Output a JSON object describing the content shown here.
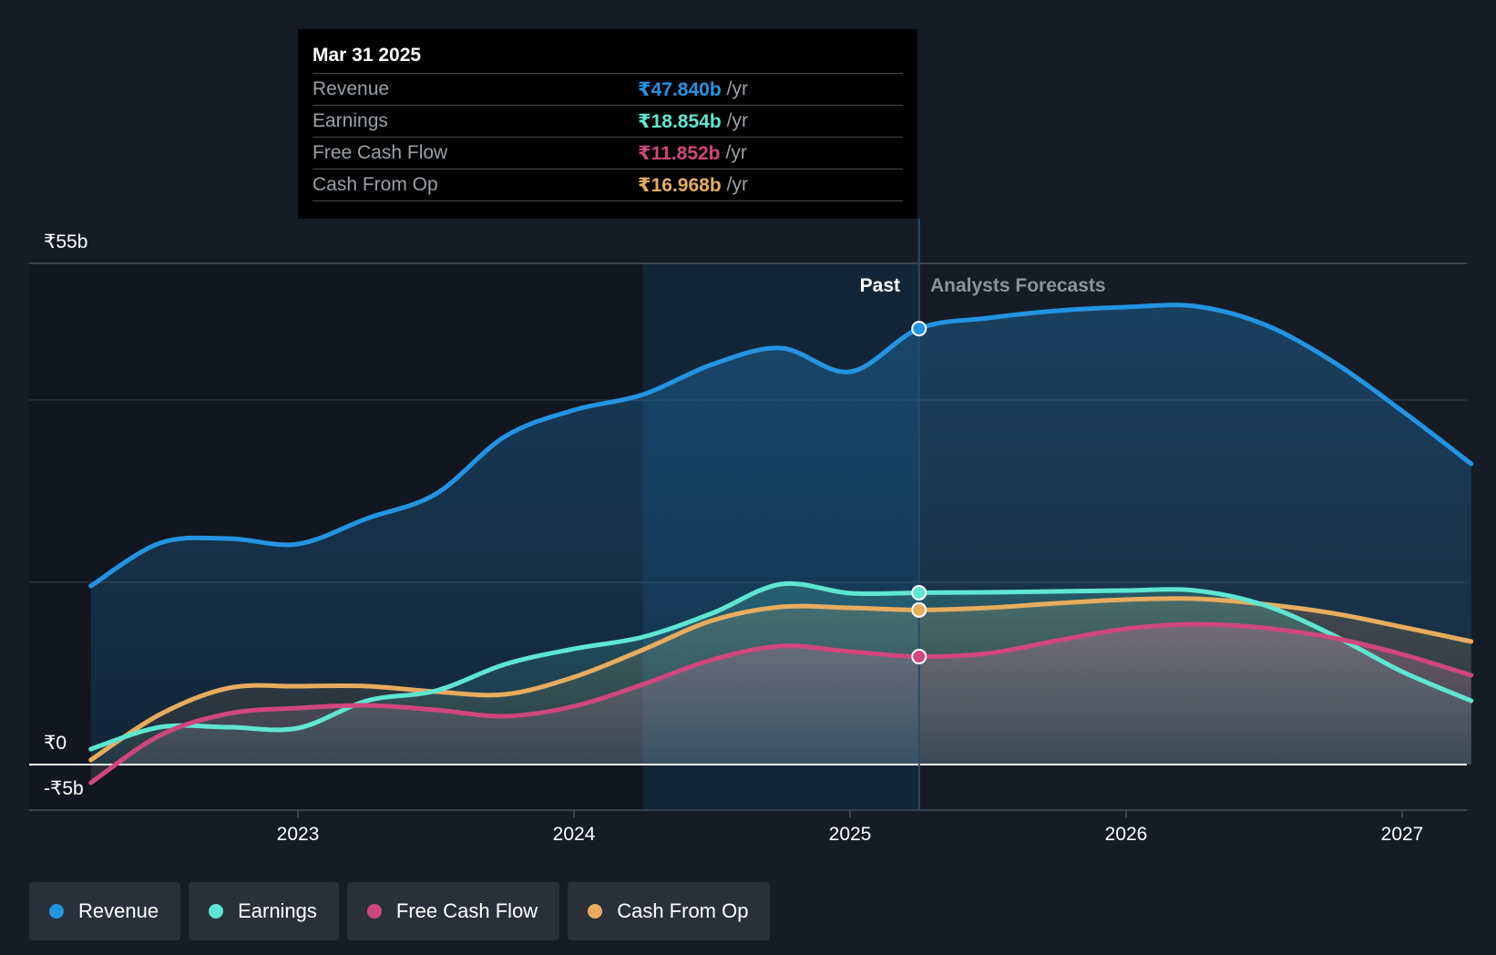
{
  "chart_data": {
    "type": "area",
    "tooltip_date": "Mar 31 2025",
    "past_label": "Past",
    "forecast_label": "Analysts Forecasts",
    "y_tick_labels": [
      "₹55b",
      "₹0",
      "-₹5b"
    ],
    "y_tick_values": [
      55,
      0,
      -5
    ],
    "ylim": [
      -5,
      55
    ],
    "x_tick_labels": [
      "2023",
      "2024",
      "2025",
      "2026",
      "2027"
    ],
    "x_tick_values": [
      2023,
      2024,
      2025,
      2026,
      2027
    ],
    "xlim": [
      2022.08,
      2027.25
    ],
    "highlight_start": 2024.25,
    "past_end": 2025.25,
    "series": [
      {
        "name": "Revenue",
        "color": "#2394e2",
        "tooltip_value": "₹47.840b",
        "unit": "/yr",
        "points": [
          [
            2022.25,
            19.6
          ],
          [
            2022.5,
            24.3
          ],
          [
            2022.75,
            24.8
          ],
          [
            2023.0,
            24.2
          ],
          [
            2023.25,
            27.0
          ],
          [
            2023.5,
            29.7
          ],
          [
            2023.75,
            36.0
          ],
          [
            2024.0,
            38.9
          ],
          [
            2024.25,
            40.6
          ],
          [
            2024.5,
            43.9
          ],
          [
            2024.75,
            45.7
          ],
          [
            2025.0,
            43.1
          ],
          [
            2025.25,
            47.84
          ],
          [
            2025.5,
            49.0
          ],
          [
            2025.75,
            49.8
          ],
          [
            2026.0,
            50.2
          ],
          [
            2026.25,
            50.3
          ],
          [
            2026.5,
            48.3
          ],
          [
            2026.75,
            44.2
          ],
          [
            2027.0,
            38.8
          ],
          [
            2027.25,
            33.0
          ]
        ]
      },
      {
        "name": "Earnings",
        "color": "#5ee6d2",
        "tooltip_value": "₹18.854b",
        "unit": "/yr",
        "points": [
          [
            2022.25,
            1.7
          ],
          [
            2022.5,
            4.1
          ],
          [
            2022.75,
            4.1
          ],
          [
            2023.0,
            4.0
          ],
          [
            2023.25,
            7.0
          ],
          [
            2023.5,
            8.1
          ],
          [
            2023.75,
            11.0
          ],
          [
            2024.0,
            12.7
          ],
          [
            2024.25,
            14.0
          ],
          [
            2024.5,
            16.6
          ],
          [
            2024.75,
            19.8
          ],
          [
            2025.0,
            18.8
          ],
          [
            2025.25,
            18.854
          ],
          [
            2025.5,
            18.9
          ],
          [
            2025.75,
            19.0
          ],
          [
            2026.0,
            19.1
          ],
          [
            2026.25,
            19.1
          ],
          [
            2026.5,
            17.5
          ],
          [
            2026.75,
            14.2
          ],
          [
            2027.0,
            10.2
          ],
          [
            2027.25,
            7.0
          ]
        ]
      },
      {
        "name": "Free Cash Flow",
        "color": "#d0467e",
        "tooltip_value": "₹11.852b",
        "unit": "/yr",
        "points": [
          [
            2022.25,
            -2.0
          ],
          [
            2022.5,
            3.2
          ],
          [
            2022.75,
            5.6
          ],
          [
            2023.0,
            6.2
          ],
          [
            2023.25,
            6.5
          ],
          [
            2023.5,
            6.0
          ],
          [
            2023.75,
            5.3
          ],
          [
            2024.0,
            6.4
          ],
          [
            2024.25,
            8.8
          ],
          [
            2024.5,
            11.5
          ],
          [
            2024.75,
            13.0
          ],
          [
            2025.0,
            12.4
          ],
          [
            2025.25,
            11.852
          ],
          [
            2025.5,
            12.2
          ],
          [
            2025.75,
            13.6
          ],
          [
            2026.0,
            14.9
          ],
          [
            2026.25,
            15.4
          ],
          [
            2026.5,
            15.0
          ],
          [
            2026.75,
            13.9
          ],
          [
            2027.0,
            12.1
          ],
          [
            2027.25,
            9.8
          ]
        ]
      },
      {
        "name": "Cash From Op",
        "color": "#e8ac5e",
        "tooltip_value": "₹16.968b",
        "unit": "/yr",
        "points": [
          [
            2022.25,
            0.5
          ],
          [
            2022.5,
            5.5
          ],
          [
            2022.75,
            8.4
          ],
          [
            2023.0,
            8.6
          ],
          [
            2023.25,
            8.6
          ],
          [
            2023.5,
            8.0
          ],
          [
            2023.75,
            7.7
          ],
          [
            2024.0,
            9.6
          ],
          [
            2024.25,
            12.6
          ],
          [
            2024.5,
            15.8
          ],
          [
            2024.75,
            17.3
          ],
          [
            2025.0,
            17.2
          ],
          [
            2025.25,
            16.968
          ],
          [
            2025.5,
            17.2
          ],
          [
            2025.75,
            17.7
          ],
          [
            2026.0,
            18.1
          ],
          [
            2026.25,
            18.2
          ],
          [
            2026.5,
            17.6
          ],
          [
            2026.75,
            16.6
          ],
          [
            2027.0,
            15.1
          ],
          [
            2027.25,
            13.5
          ]
        ]
      }
    ]
  }
}
